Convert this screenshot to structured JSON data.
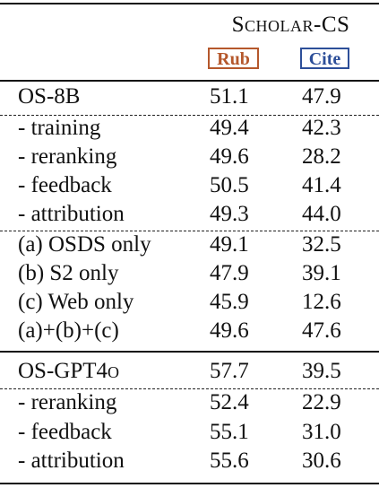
{
  "header": {
    "dataset": "Scholar-CS",
    "metric_rub": "Rub",
    "metric_cite": "Cite"
  },
  "colors": {
    "rub": "#b5582c",
    "cite": "#2d4f99"
  },
  "groups": [
    {
      "rows": [
        {
          "label": "OS-8B",
          "rub": "51.1",
          "cite": "47.9"
        },
        {
          "label": "- training",
          "rub": "49.4",
          "cite": "42.3"
        },
        {
          "label": "- reranking",
          "rub": "49.6",
          "cite": "28.2"
        },
        {
          "label": "- feedback",
          "rub": "50.5",
          "cite": "41.4"
        },
        {
          "label": "- attribution",
          "rub": "49.3",
          "cite": "44.0"
        },
        {
          "label": "(a) OSDS only",
          "rub": "49.1",
          "cite": "32.5"
        },
        {
          "label": "(b) S2 only",
          "rub": "47.9",
          "cite": "39.1"
        },
        {
          "label": "(c) Web only",
          "rub": "45.9",
          "cite": "12.6"
        },
        {
          "label": "(a)+(b)+(c)",
          "rub": "49.6",
          "cite": "47.6"
        }
      ]
    },
    {
      "rows": [
        {
          "label": "OS-GPT4o",
          "rub": "57.7",
          "cite": "39.5"
        },
        {
          "label": "- reranking",
          "rub": "52.4",
          "cite": "22.9"
        },
        {
          "label": "- feedback",
          "rub": "55.1",
          "cite": "31.0"
        },
        {
          "label": "- attribution",
          "rub": "55.6",
          "cite": "30.6"
        }
      ]
    }
  ]
}
